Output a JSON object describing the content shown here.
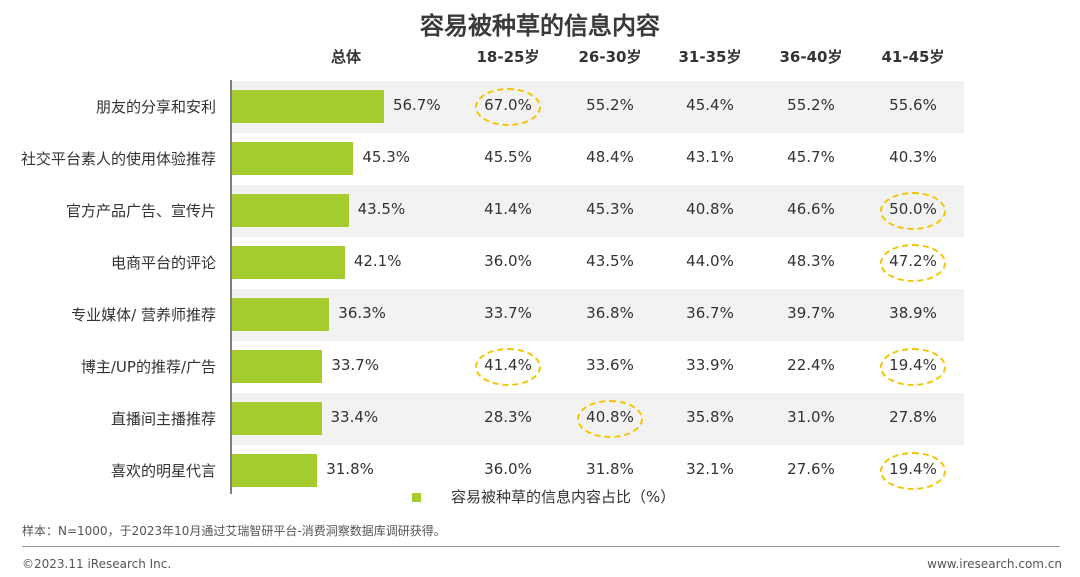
{
  "chart_data": {
    "type": "table",
    "title": "容易被种草的信息内容",
    "columns": [
      "总体",
      "18-25岁",
      "26-30岁",
      "31-35岁",
      "36-40岁",
      "41-45岁"
    ],
    "rows": [
      {
        "label": "朋友的分享和安利",
        "total": 56.7,
        "total_text": "56.7%",
        "values": [
          "67.0%",
          "55.2%",
          "45.4%",
          "55.2%",
          "55.6%"
        ]
      },
      {
        "label": "社交平台素人的使用体验推荐",
        "total": 45.3,
        "total_text": "45.3%",
        "values": [
          "45.5%",
          "48.4%",
          "43.1%",
          "45.7%",
          "40.3%"
        ]
      },
      {
        "label": "官方产品广告、宣传片",
        "total": 43.5,
        "total_text": "43.5%",
        "values": [
          "41.4%",
          "45.3%",
          "40.8%",
          "46.6%",
          "50.0%"
        ]
      },
      {
        "label": "电商平台的评论",
        "total": 42.1,
        "total_text": "42.1%",
        "values": [
          "36.0%",
          "43.5%",
          "44.0%",
          "48.3%",
          "47.2%"
        ]
      },
      {
        "label": "专业媒体/ 营养师推荐",
        "total": 36.3,
        "total_text": "36.3%",
        "values": [
          "33.7%",
          "36.8%",
          "36.7%",
          "39.7%",
          "38.9%"
        ]
      },
      {
        "label": "博主/UP的推荐/广告",
        "total": 33.7,
        "total_text": "33.7%",
        "values": [
          "41.4%",
          "33.6%",
          "33.9%",
          "22.4%",
          "19.4%"
        ]
      },
      {
        "label": "直播间主播推荐",
        "total": 33.4,
        "total_text": "33.4%",
        "values": [
          "28.3%",
          "40.8%",
          "35.8%",
          "31.0%",
          "27.8%"
        ]
      },
      {
        "label": "喜欢的明星代言",
        "total": 31.8,
        "total_text": "31.8%",
        "values": [
          "36.0%",
          "31.8%",
          "32.1%",
          "27.6%",
          "19.4%"
        ]
      }
    ],
    "highlighted_cells": [
      [
        0,
        0
      ],
      [
        5,
        0
      ],
      [
        6,
        1
      ],
      [
        2,
        4
      ],
      [
        3,
        4
      ],
      [
        5,
        4
      ],
      [
        7,
        4
      ]
    ],
    "legend": "容易被种草的信息内容占比（%）",
    "bar_color": "#a4cc2e",
    "band_color": "#f2f2f2",
    "highlight_color": "#f5c400"
  },
  "note": "样本：N=1000，于2023年10月通过艾瑞智研平台-消费洞察数据库调研获得。",
  "footer": {
    "left": "©2023.11 iResearch Inc.",
    "right": "www.iresearch.com.cn"
  }
}
